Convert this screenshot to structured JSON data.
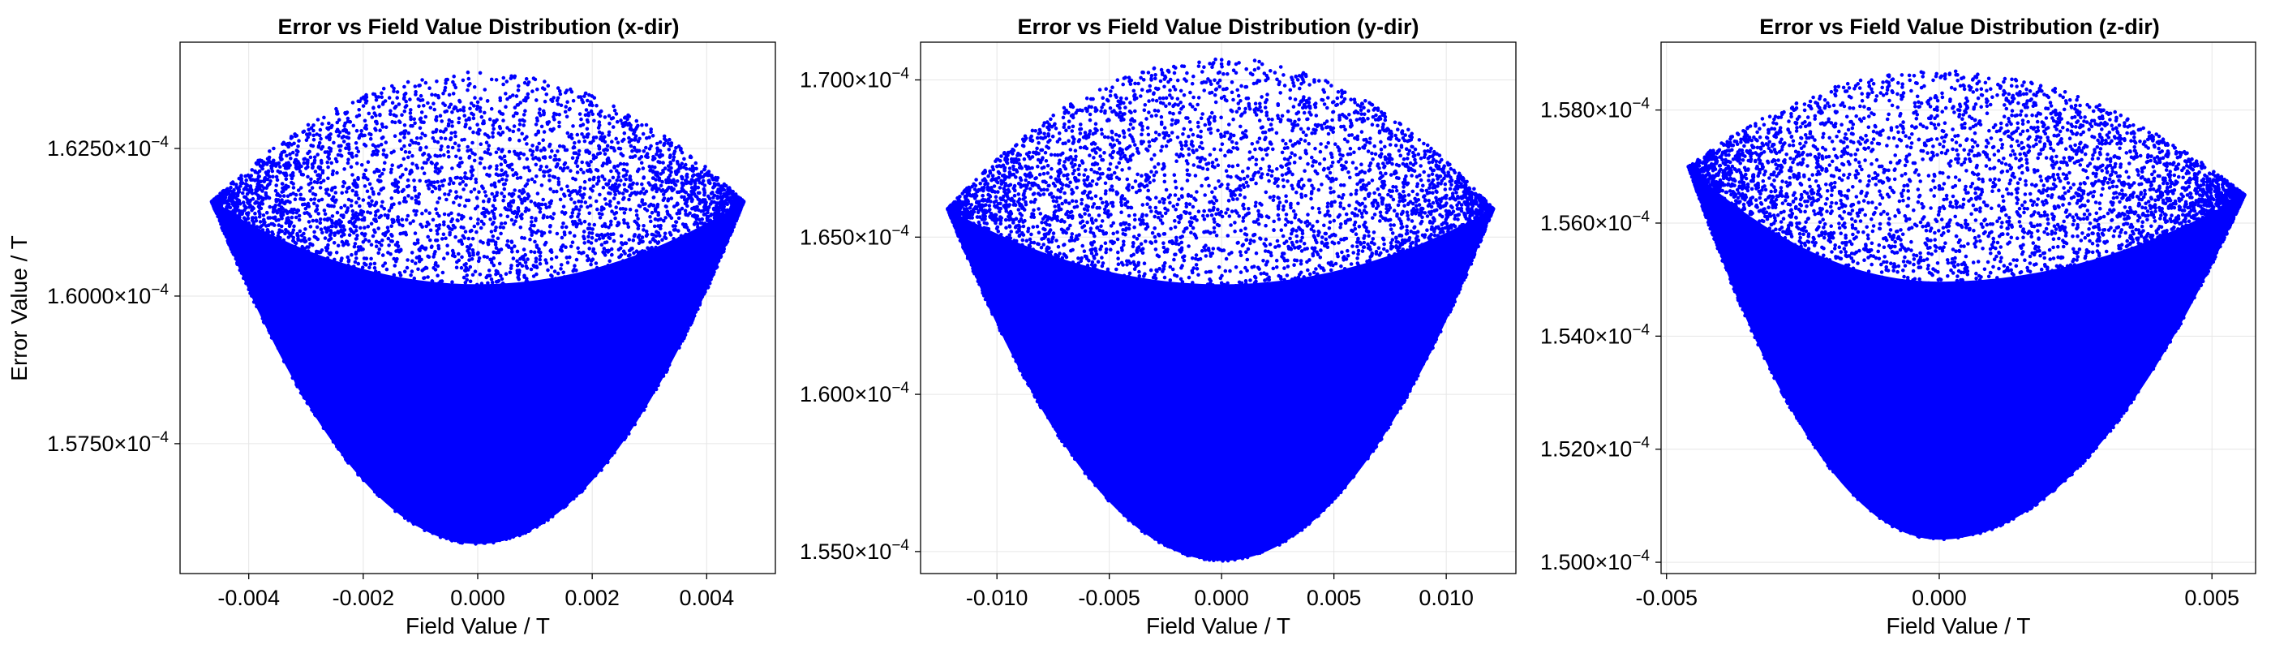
{
  "figure": {
    "marker_color": "#0000ff",
    "grid_color": "#e6e6e6",
    "frame_color": "#000000"
  },
  "chart_data": [
    {
      "type": "scatter",
      "title": "Error vs Field Value Distribution (x-dir)",
      "xlabel": "Field Value / T",
      "ylabel": "Error Value / T",
      "xlim": [
        -0.0052,
        0.0052
      ],
      "ylim": [
        0.0001553,
        0.0001643
      ],
      "grid": true,
      "xticks": [
        {
          "value": -0.004,
          "label": "-0.004"
        },
        {
          "value": -0.002,
          "label": "-0.002"
        },
        {
          "value": 0.0,
          "label": "0.000"
        },
        {
          "value": 0.002,
          "label": "0.002"
        },
        {
          "value": 0.004,
          "label": "0.004"
        }
      ],
      "yticks": [
        {
          "value": 0.0001575,
          "mantissa": "1.5750×10",
          "exponent": "−4"
        },
        {
          "value": 0.00016,
          "mantissa": "1.6000×10",
          "exponent": "−4"
        },
        {
          "value": 0.0001625,
          "mantissa": "1.6250×10",
          "exponent": "−4"
        }
      ],
      "distribution": {
        "x_range": [
          -0.00465,
          0.00465
        ],
        "y_at_center": 0.0001558,
        "y_at_edge": 0.0001616,
        "y_top_at_center": 0.0001638,
        "y_top_at_edge": 0.0001616,
        "point_count": 9000
      }
    },
    {
      "type": "scatter",
      "title": "Error vs Field Value Distribution (y-dir)",
      "xlabel": "Field Value / T",
      "ylabel": "",
      "xlim": [
        -0.0134,
        0.0131
      ],
      "ylim": [
        0.0001543,
        0.0001712
      ],
      "grid": true,
      "xticks": [
        {
          "value": -0.01,
          "label": "-0.010"
        },
        {
          "value": -0.005,
          "label": "-0.005"
        },
        {
          "value": 0.0,
          "label": "0.000"
        },
        {
          "value": 0.005,
          "label": "0.005"
        },
        {
          "value": 0.01,
          "label": "0.010"
        }
      ],
      "yticks": [
        {
          "value": 0.000155,
          "mantissa": "1.550×10",
          "exponent": "−4"
        },
        {
          "value": 0.00016,
          "mantissa": "1.600×10",
          "exponent": "−4"
        },
        {
          "value": 0.000165,
          "mantissa": "1.650×10",
          "exponent": "−4"
        },
        {
          "value": 0.00017,
          "mantissa": "1.700×10",
          "exponent": "−4"
        }
      ],
      "distribution": {
        "x_range": [
          -0.0122,
          0.0121
        ],
        "y_at_center": 0.0001547,
        "y_at_edge": 0.0001659,
        "y_top_at_center": 0.0001707,
        "y_top_at_edge": 0.0001659,
        "point_count": 9000
      }
    },
    {
      "type": "scatter",
      "title": "Error vs Field Value Distribution (z-dir)",
      "xlabel": "Field Value / T",
      "ylabel": "",
      "xlim": [
        -0.0051,
        0.0058
      ],
      "ylim": [
        0.0001498,
        0.0001592
      ],
      "grid": true,
      "xticks": [
        {
          "value": -0.005,
          "label": "-0.005"
        },
        {
          "value": 0.0,
          "label": "0.000"
        },
        {
          "value": 0.005,
          "label": "0.005"
        }
      ],
      "yticks": [
        {
          "value": 0.00015,
          "mantissa": "1.500×10",
          "exponent": "−4"
        },
        {
          "value": 0.000152,
          "mantissa": "1.520×10",
          "exponent": "−4"
        },
        {
          "value": 0.000154,
          "mantissa": "1.540×10",
          "exponent": "−4"
        },
        {
          "value": 0.000156,
          "mantissa": "1.560×10",
          "exponent": "−4"
        },
        {
          "value": 0.000158,
          "mantissa": "1.580×10",
          "exponent": "−4"
        }
      ],
      "distribution": {
        "x_range": [
          -0.0046,
          0.0056
        ],
        "y_at_center": 0.0001504,
        "y_at_edge_left": 0.000157,
        "y_at_edge_right": 0.0001565,
        "y_top_at_center": 0.0001587,
        "point_count": 9000
      }
    }
  ]
}
